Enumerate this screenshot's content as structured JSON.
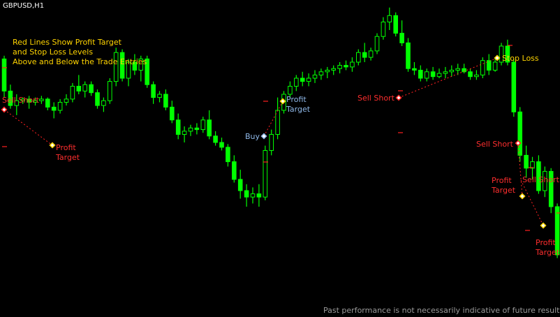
{
  "chart_data": {
    "type": "candlestick",
    "symbol": "GBPUSD,H1",
    "note": [
      "Red Lines Show Profit Target",
      "and Stop Loss Levels",
      "Above and Below the Trade Entries"
    ],
    "disclaimer": "Past performance is not necessarily indicative of future results.",
    "colors": {
      "background": "#000000",
      "candle": "#00ff00",
      "level_line": "#ff2020",
      "sell_label": "#ff2e2e",
      "buy_label": "#8fb8e8",
      "note_text": "#ffd400",
      "disclaimer": "#9a9a9a"
    },
    "price_range": [
      0,
      100
    ],
    "candles": [
      [
        72,
        74,
        48,
        52
      ],
      [
        52,
        56,
        41,
        43
      ],
      [
        43,
        50,
        37,
        46
      ],
      [
        46,
        48,
        44,
        47
      ],
      [
        47,
        49,
        41,
        45
      ],
      [
        45,
        48,
        43,
        46
      ],
      [
        46,
        49,
        44,
        47
      ],
      [
        47,
        48,
        40,
        42
      ],
      [
        42,
        45,
        35,
        40
      ],
      [
        40,
        47,
        38,
        45
      ],
      [
        45,
        50,
        43,
        47
      ],
      [
        47,
        57,
        45,
        55
      ],
      [
        55,
        62,
        50,
        52
      ],
      [
        52,
        58,
        48,
        56
      ],
      [
        56,
        58,
        49,
        51
      ],
      [
        51,
        53,
        41,
        43
      ],
      [
        43,
        48,
        39,
        46
      ],
      [
        46,
        60,
        44,
        58
      ],
      [
        58,
        79,
        55,
        76
      ],
      [
        76,
        78,
        58,
        60
      ],
      [
        60,
        72,
        55,
        70
      ],
      [
        70,
        75,
        62,
        65
      ],
      [
        65,
        74,
        58,
        72
      ],
      [
        72,
        74,
        54,
        56
      ],
      [
        56,
        58,
        44,
        48
      ],
      [
        48,
        52,
        45,
        50
      ],
      [
        50,
        53,
        40,
        42
      ],
      [
        42,
        46,
        32,
        34
      ],
      [
        34,
        38,
        22,
        25
      ],
      [
        25,
        30,
        20,
        27
      ],
      [
        27,
        31,
        24,
        29
      ],
      [
        29,
        32,
        25,
        28
      ],
      [
        28,
        36,
        26,
        34
      ],
      [
        34,
        40,
        22,
        24
      ],
      [
        24,
        27,
        18,
        20
      ],
      [
        20,
        23,
        15,
        17
      ],
      [
        17,
        19,
        5,
        8
      ],
      [
        8,
        12,
        -5,
        -3
      ],
      [
        -3,
        3,
        -15,
        -10
      ],
      [
        -10,
        -6,
        -20,
        -14
      ],
      [
        -14,
        -8,
        -18,
        -12
      ],
      [
        -12,
        -6,
        -20,
        -14
      ],
      [
        -14,
        18,
        -16,
        15
      ],
      [
        15,
        28,
        12,
        25
      ],
      [
        25,
        48,
        22,
        40
      ],
      [
        40,
        52,
        38,
        50
      ],
      [
        50,
        58,
        48,
        55
      ],
      [
        55,
        62,
        52,
        60
      ],
      [
        60,
        64,
        55,
        58
      ],
      [
        58,
        63,
        55,
        60
      ],
      [
        60,
        65,
        57,
        62
      ],
      [
        62,
        66,
        59,
        64
      ],
      [
        64,
        67,
        60,
        65
      ],
      [
        65,
        68,
        62,
        66
      ],
      [
        66,
        70,
        63,
        68
      ],
      [
        68,
        71,
        65,
        67
      ],
      [
        67,
        73,
        64,
        70
      ],
      [
        70,
        78,
        68,
        76
      ],
      [
        76,
        82,
        70,
        73
      ],
      [
        73,
        79,
        71,
        77
      ],
      [
        77,
        88,
        75,
        86
      ],
      [
        86,
        98,
        84,
        95
      ],
      [
        95,
        104,
        90,
        99
      ],
      [
        99,
        101,
        86,
        88
      ],
      [
        88,
        96,
        80,
        82
      ],
      [
        82,
        85,
        64,
        66
      ],
      [
        66,
        70,
        62,
        65
      ],
      [
        65,
        68,
        58,
        60
      ],
      [
        60,
        66,
        58,
        64
      ],
      [
        64,
        67,
        59,
        61
      ],
      [
        61,
        66,
        60,
        63
      ],
      [
        63,
        67,
        60,
        64
      ],
      [
        64,
        68,
        61,
        65
      ],
      [
        65,
        69,
        62,
        66
      ],
      [
        66,
        69,
        63,
        64
      ],
      [
        64,
        66,
        59,
        61
      ],
      [
        61,
        65,
        59,
        62
      ],
      [
        62,
        73,
        60,
        71
      ],
      [
        71,
        75,
        62,
        65
      ],
      [
        65,
        72,
        64,
        70
      ],
      [
        70,
        82,
        68,
        80
      ],
      [
        80,
        84,
        68,
        70
      ],
      [
        70,
        72,
        36,
        39
      ],
      [
        39,
        42,
        8,
        12
      ],
      [
        12,
        18,
        -2,
        4
      ],
      [
        4,
        11,
        -3,
        8
      ],
      [
        8,
        12,
        -12,
        -10
      ],
      [
        -10,
        5,
        -14,
        2
      ],
      [
        2,
        4,
        -24,
        -20
      ],
      [
        -20,
        -18,
        -52,
        -50
      ]
    ],
    "trade_labels": [
      {
        "text": "Sell Short",
        "kind": "sell"
      },
      {
        "text": "Profit\nTarget",
        "kind": "target"
      },
      {
        "text": "Buy",
        "kind": "buy"
      },
      {
        "text": "Profit\nTarget",
        "kind": "target_buy"
      },
      {
        "text": "Sell Short",
        "kind": "sell"
      },
      {
        "text": "Stop Loss",
        "kind": "stop"
      },
      {
        "text": "Sell Short",
        "kind": "sell"
      },
      {
        "text": "Profit\nTarget",
        "kind": "target"
      },
      {
        "text": "Sell Short",
        "kind": "sell"
      },
      {
        "text": "Profit\nTarget",
        "kind": "target"
      }
    ]
  }
}
